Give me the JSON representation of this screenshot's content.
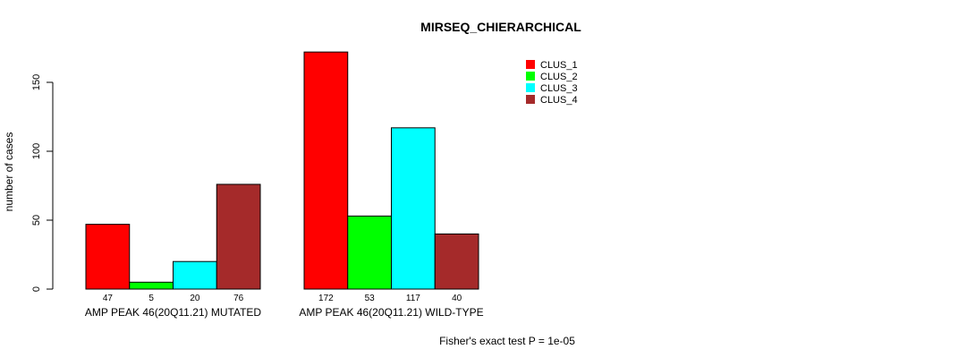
{
  "chart_data": {
    "type": "bar",
    "title": "MIRSEQ_CHIERARCHICAL",
    "xlabel": "",
    "ylabel": "number of cases",
    "ylim": [
      0,
      172
    ],
    "yticks": [
      0,
      50,
      100,
      150
    ],
    "grid": false,
    "legend_placement": "top-right",
    "categories": [
      "AMP PEAK 46(20Q11.21) MUTATED",
      "AMP PEAK 46(20Q11.21) WILD-TYPE"
    ],
    "series": [
      {
        "name": "CLUS_1",
        "color": "#ff0000",
        "values": [
          47,
          172
        ]
      },
      {
        "name": "CLUS_2",
        "color": "#00ff00",
        "values": [
          5,
          53
        ]
      },
      {
        "name": "CLUS_3",
        "color": "#00ffff",
        "values": [
          20,
          117
        ]
      },
      {
        "name": "CLUS_4",
        "color": "#a52a2a",
        "values": [
          76,
          40
        ]
      }
    ],
    "annotation": "Fisher's exact test P = 1e-05"
  }
}
